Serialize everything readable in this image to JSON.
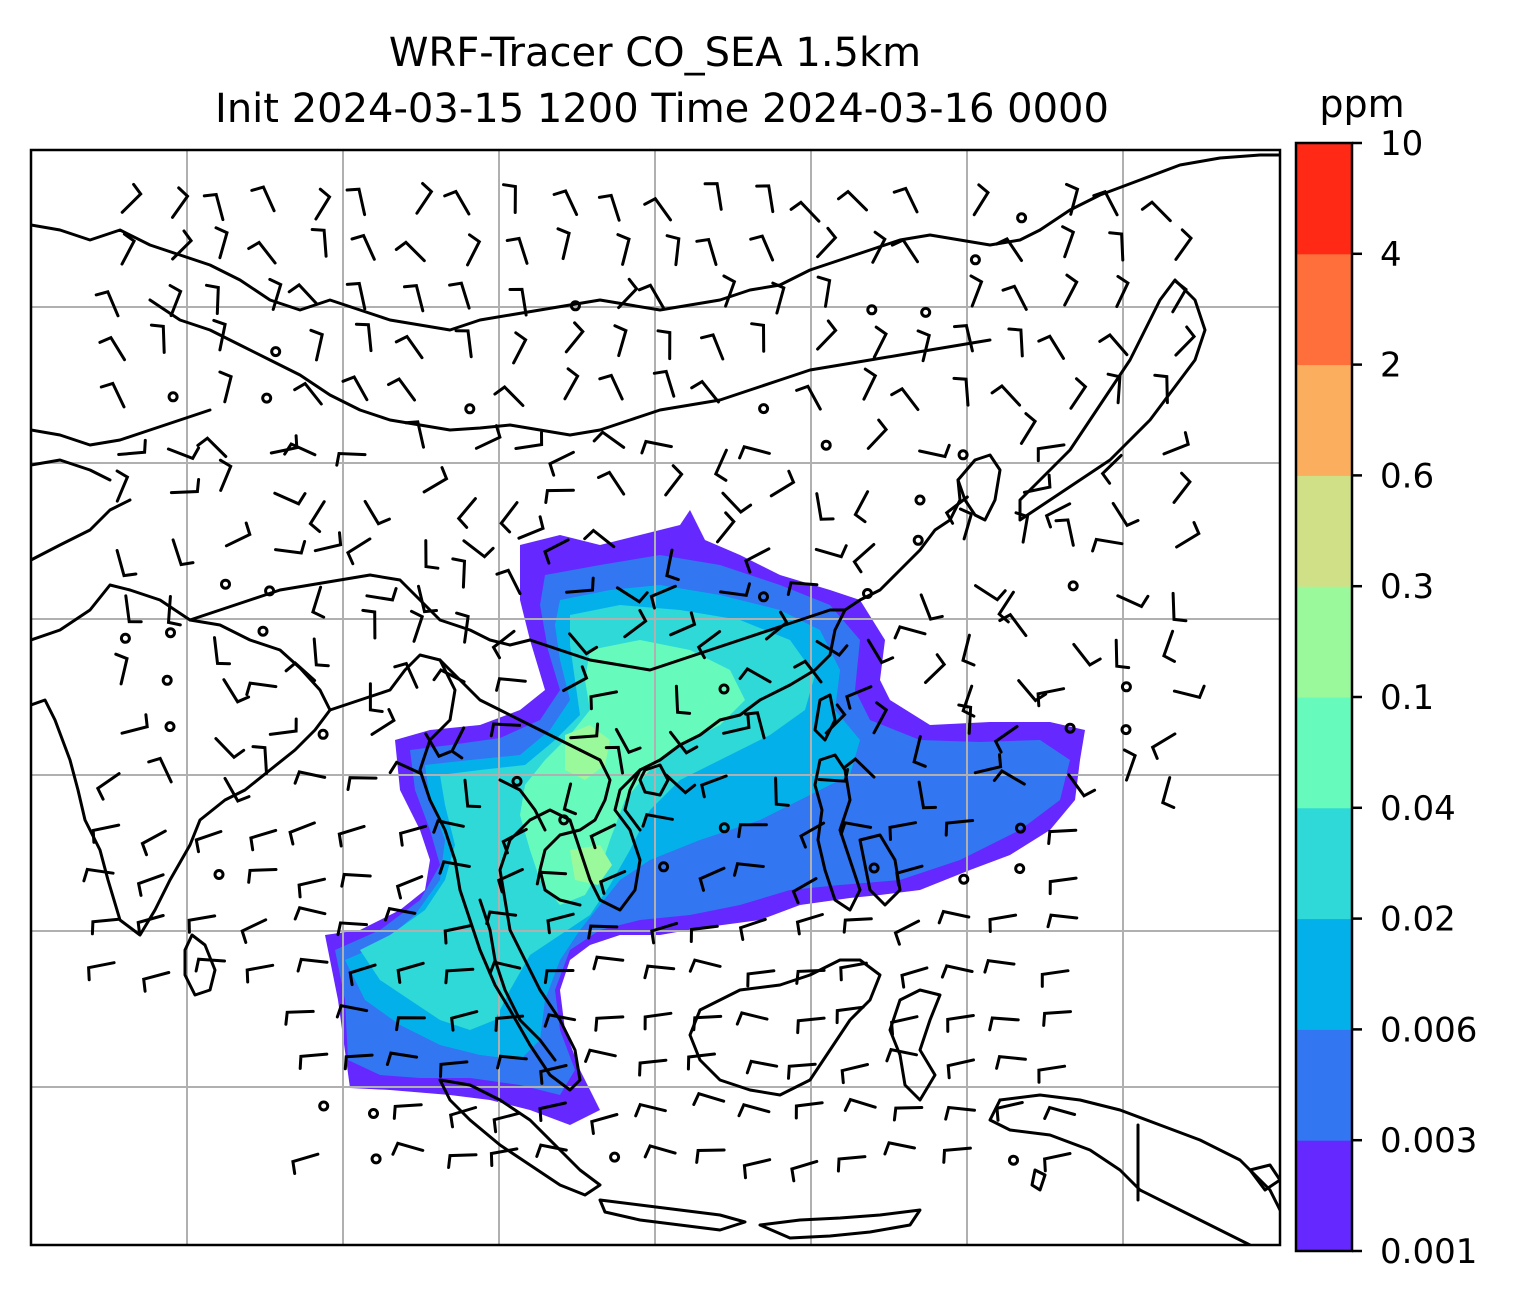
{
  "title": {
    "line1": "WRF-Tracer CO_SEA 1.5km",
    "line2": "Init 2024-03-15 1200 Time 2024-03-16 0000"
  },
  "colorbar": {
    "unit": "ppm",
    "levels": [
      "0.001",
      "0.003",
      "0.006",
      "0.02",
      "0.04",
      "0.1",
      "0.3",
      "0.6",
      "2",
      "4",
      "10"
    ],
    "colors": [
      "#6528ff",
      "#3276f2",
      "#04b0ea",
      "#2ed9d8",
      "#66fbbd",
      "#99f99b",
      "#d0e086",
      "#fbaf5e",
      "#fe6f3b",
      "#ff2916"
    ]
  },
  "map": {
    "gridlines": true,
    "overlays": [
      "coastlines",
      "country-borders",
      "wind-barbs",
      "tracer-concentration-fill"
    ]
  }
}
